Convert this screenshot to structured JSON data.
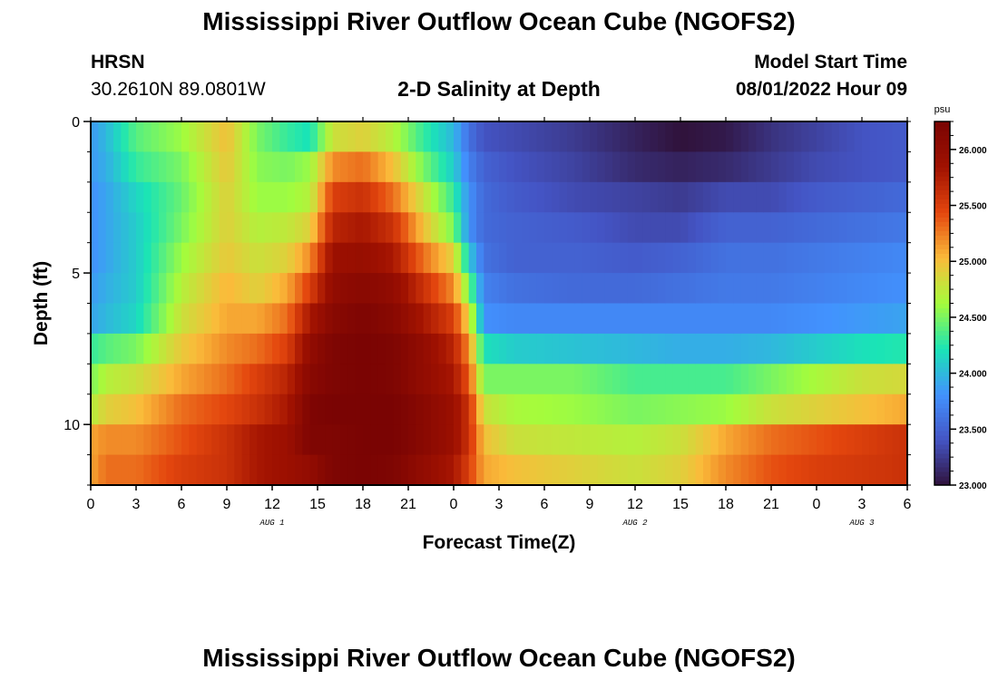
{
  "page": {
    "title": "Mississippi River Outflow Ocean Cube (NGOFS2)",
    "station": "HRSN",
    "coords": "30.2610N  89.0801W",
    "product": "2-D Salinity at Depth",
    "start_label": "Model Start Time",
    "start_value": "08/01/2022 Hour 09",
    "footer_title": "Mississippi River Outflow Ocean Cube (NGOFS2)"
  },
  "colors": {
    "cmap": [
      "#30123b",
      "#4454c4",
      "#4292fe",
      "#1ae4b6",
      "#a4fc3c",
      "#fabb3a",
      "#e4470e",
      "#a11201",
      "#7a0403"
    ],
    "frame": "#000000"
  },
  "chart_data": {
    "type": "heatmap",
    "xlabel": "Forecast Time(Z)",
    "ylabel": "Depth (ft)",
    "colorbar_unit": "psu",
    "x_range_hours": [
      0,
      54
    ],
    "y_range_ft": [
      0,
      12
    ],
    "x_tick_labels": [
      "0",
      "3",
      "6",
      "9",
      "12",
      "15",
      "18",
      "21",
      "0",
      "3",
      "6",
      "9",
      "12",
      "15",
      "18",
      "21",
      "0",
      "3",
      "6"
    ],
    "y_tick_values": [
      0,
      5,
      10
    ],
    "y_tick_labels": [
      "0",
      "5",
      "10"
    ],
    "date_labels": [
      {
        "text": "AUG 1",
        "hour": 12
      },
      {
        "text": "AUG 2",
        "hour": 36
      },
      {
        "text": "AUG 3",
        "hour": 51
      }
    ],
    "colorbar_range": [
      23.0,
      26.25
    ],
    "colorbar_tick_values": [
      23.0,
      23.5,
      24.0,
      24.5,
      25.0,
      25.5,
      26.0
    ],
    "colorbar_tick_labels": [
      "23.000",
      "23.500",
      "24.000",
      "24.500",
      "25.000",
      "25.500",
      "26.000"
    ],
    "depth_rows_ft": [
      0.5,
      1.5,
      2.5,
      3.5,
      4.5,
      5.5,
      6.5,
      7.5,
      8.5,
      9.5,
      10.5,
      11.5
    ],
    "profile_hours": [
      0,
      1,
      3,
      6,
      9,
      11,
      13,
      14.5,
      16,
      18,
      20,
      22,
      24,
      25,
      26,
      28,
      32,
      36,
      39,
      42,
      45,
      48,
      51,
      54
    ],
    "salinity_profiles_psu": [
      [
        23.85,
        23.85,
        23.8,
        23.8,
        23.8,
        23.85,
        23.9,
        24.3,
        24.5,
        24.7,
        25.1,
        25.1
      ],
      [
        24.0,
        23.95,
        23.9,
        23.9,
        23.9,
        23.95,
        24.0,
        24.4,
        24.7,
        24.9,
        25.2,
        25.3
      ],
      [
        24.4,
        24.3,
        24.15,
        24.1,
        24.1,
        24.1,
        24.15,
        24.5,
        24.8,
        25.0,
        25.2,
        25.3
      ],
      [
        24.6,
        24.5,
        24.45,
        24.5,
        24.6,
        24.7,
        24.8,
        24.95,
        25.1,
        25.3,
        25.4,
        25.5
      ],
      [
        25.0,
        24.95,
        24.9,
        24.9,
        24.95,
        25.05,
        25.1,
        25.2,
        25.3,
        25.45,
        25.6,
        25.6
      ],
      [
        24.5,
        24.55,
        24.6,
        24.7,
        24.8,
        24.9,
        25.1,
        25.3,
        25.5,
        25.6,
        25.8,
        25.8
      ],
      [
        24.3,
        24.5,
        24.6,
        24.75,
        24.9,
        25.1,
        25.3,
        25.5,
        25.7,
        25.8,
        25.9,
        25.9
      ],
      [
        24.2,
        24.6,
        24.7,
        24.9,
        25.2,
        25.5,
        25.8,
        26.0,
        26.1,
        26.2,
        26.2,
        26.0
      ],
      [
        24.8,
        25.2,
        25.5,
        25.7,
        25.9,
        26.0,
        26.1,
        26.2,
        26.2,
        26.25,
        26.2,
        26.2
      ],
      [
        24.9,
        25.3,
        25.6,
        25.8,
        25.95,
        26.1,
        26.2,
        26.25,
        26.25,
        26.25,
        26.25,
        26.25
      ],
      [
        24.7,
        25.0,
        25.3,
        25.6,
        25.8,
        26.0,
        26.1,
        26.2,
        26.2,
        26.25,
        26.25,
        26.2
      ],
      [
        24.3,
        24.5,
        24.8,
        25.0,
        25.3,
        25.6,
        25.8,
        26.0,
        26.0,
        26.1,
        26.1,
        26.0
      ],
      [
        24.0,
        24.1,
        24.3,
        24.5,
        24.9,
        25.2,
        25.5,
        25.7,
        25.8,
        25.9,
        25.9,
        25.8
      ],
      [
        23.6,
        23.7,
        23.8,
        23.8,
        24.1,
        24.5,
        24.9,
        25.2,
        25.4,
        25.6,
        25.6,
        25.5
      ],
      [
        23.4,
        23.5,
        23.55,
        23.55,
        23.6,
        23.7,
        23.8,
        24.2,
        24.5,
        24.8,
        25.0,
        25.1
      ],
      [
        23.35,
        23.4,
        23.45,
        23.5,
        23.5,
        23.6,
        23.75,
        24.1,
        24.5,
        24.65,
        24.8,
        25.0
      ],
      [
        23.25,
        23.3,
        23.35,
        23.45,
        23.5,
        23.55,
        23.75,
        24.05,
        24.5,
        24.6,
        24.75,
        24.9
      ],
      [
        23.1,
        23.15,
        23.3,
        23.35,
        23.45,
        23.55,
        23.75,
        24.0,
        24.35,
        24.5,
        24.7,
        24.8
      ],
      [
        23.0,
        23.1,
        23.25,
        23.35,
        23.5,
        23.6,
        23.75,
        23.95,
        24.35,
        24.55,
        24.8,
        24.9
      ],
      [
        23.05,
        23.15,
        23.35,
        23.5,
        23.6,
        23.65,
        23.75,
        23.95,
        24.35,
        24.6,
        25.1,
        25.2
      ],
      [
        23.2,
        23.25,
        23.35,
        23.5,
        23.6,
        23.65,
        23.75,
        24.0,
        24.5,
        24.8,
        25.3,
        25.4
      ],
      [
        23.3,
        23.35,
        23.45,
        23.55,
        23.65,
        23.7,
        23.8,
        24.1,
        24.65,
        24.9,
        25.4,
        25.5
      ],
      [
        23.4,
        23.4,
        23.5,
        23.6,
        23.7,
        23.75,
        23.85,
        24.2,
        24.8,
        25.0,
        25.5,
        25.55
      ],
      [
        23.45,
        23.45,
        23.55,
        23.65,
        23.75,
        23.8,
        23.9,
        24.25,
        24.85,
        25.1,
        25.6,
        25.6
      ]
    ]
  }
}
